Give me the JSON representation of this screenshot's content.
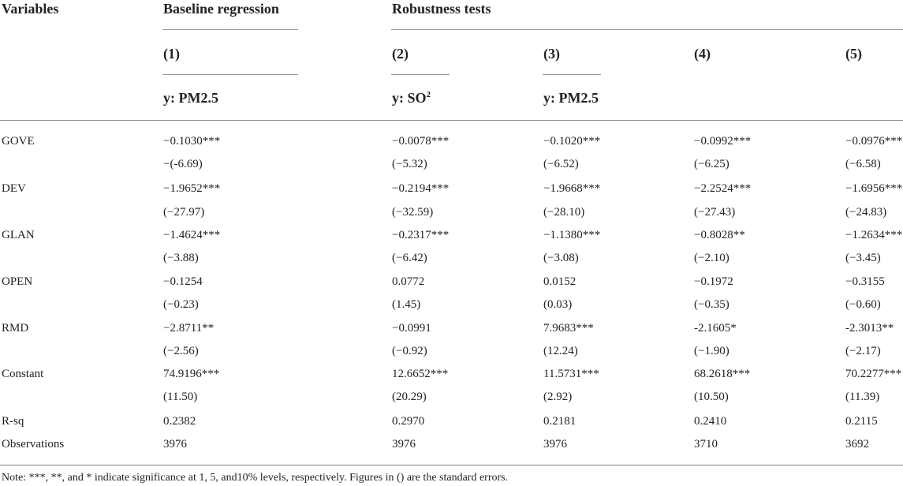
{
  "header": {
    "variables": "Variables",
    "baseline": "Baseline regression",
    "robustness": "Robustness tests",
    "cols": [
      "(1)",
      "(2)",
      "(3)",
      "(4)",
      "(5)"
    ],
    "y1": "y: PM2.5",
    "y2_base": "y: SO",
    "y2_sup": "2",
    "y3": "y: PM2.5"
  },
  "rows": [
    {
      "label": "GOVE",
      "values": [
        "−0.1030***",
        "−0.0078***",
        "−0.1020***",
        "−0.0992***",
        "−0.0976***"
      ]
    },
    {
      "label": "",
      "values": [
        "−(-6.69)",
        "(−5.32)",
        "(−6.52)",
        "(−6.25)",
        "(−6.58)"
      ]
    },
    {
      "label": "DEV",
      "values": [
        "−1.9652***",
        "−0.2194***",
        "−1.9668***",
        "−2.2524***",
        "−1.6956***"
      ]
    },
    {
      "label": "",
      "values": [
        "(−27.97)",
        "(−32.59)",
        "(−28.10)",
        "(−27.43)",
        "(−24.83)"
      ]
    },
    {
      "label": "GLAN",
      "values": [
        "−1.4624***",
        "−0.2317***",
        "−1.1380***",
        "−0.8028**",
        "−1.2634***"
      ]
    },
    {
      "label": "",
      "values": [
        "(−3.88)",
        "(−6.42)",
        "(−3.08)",
        "(−2.10)",
        "(−3.45)"
      ]
    },
    {
      "label": "OPEN",
      "values": [
        "−0.1254",
        "0.0772",
        "0.0152",
        "−0.1972",
        "−0.3155"
      ]
    },
    {
      "label": "",
      "values": [
        "(−0.23)",
        "(1.45)",
        "(0.03)",
        "(−0.35)",
        "(−0.60)"
      ]
    },
    {
      "label": "RMD",
      "values": [
        "−2.8711**",
        "−0.0991",
        "7.9683***",
        "-2.1605*",
        "-2.3013**"
      ]
    },
    {
      "label": "",
      "values": [
        "(−2.56)",
        "(−0.92)",
        "(12.24)",
        "(−1.90)",
        "(−2.17)"
      ]
    },
    {
      "label": "Constant",
      "values": [
        "74.9196***",
        "12.6652***",
        "11.5731***",
        "68.2618***",
        "70.2277***"
      ]
    },
    {
      "label": "",
      "values": [
        "(11.50)",
        "(20.29)",
        "(2.92)",
        "(10.50)",
        "(11.39)"
      ]
    },
    {
      "label": "R-sq",
      "values": [
        "0.2382",
        "0.2970",
        "0.2181",
        "0.2410",
        "0.2115"
      ]
    },
    {
      "label": "Observations",
      "values": [
        "3976",
        "3976",
        "3976",
        "3710",
        "3692"
      ]
    }
  ],
  "note": "Note: ***, **, and * indicate significance at 1, 5, and10% levels, respectively. Figures in () are the standard errors."
}
